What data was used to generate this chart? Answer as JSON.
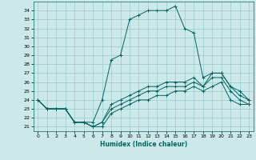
{
  "xlabel": "Humidex (Indice chaleur)",
  "xlim": [
    -0.5,
    23.5
  ],
  "ylim": [
    20.5,
    35.0
  ],
  "xticks": [
    0,
    1,
    2,
    3,
    4,
    5,
    6,
    7,
    8,
    9,
    10,
    11,
    12,
    13,
    14,
    15,
    16,
    17,
    18,
    19,
    20,
    21,
    22,
    23
  ],
  "yticks": [
    21,
    22,
    23,
    24,
    25,
    26,
    27,
    28,
    29,
    30,
    31,
    32,
    33,
    34
  ],
  "bg_color": "#cce8e8",
  "line_color": "#006666",
  "grid_color": "#99cccc",
  "lines": [
    {
      "x": [
        0,
        1,
        2,
        3,
        4,
        5,
        6,
        7,
        8,
        9,
        10,
        11,
        12,
        13,
        14,
        15,
        16,
        17,
        18,
        19,
        20,
        21,
        22,
        23
      ],
      "y": [
        24.0,
        23.0,
        23.0,
        23.0,
        21.5,
        21.5,
        21.5,
        24.0,
        28.5,
        29.0,
        33.0,
        33.5,
        34.0,
        34.0,
        34.0,
        34.5,
        32.0,
        31.5,
        26.5,
        27.0,
        27.0,
        25.5,
        25.0,
        24.0
      ]
    },
    {
      "x": [
        0,
        1,
        2,
        3,
        4,
        5,
        6,
        7,
        8,
        9,
        10,
        11,
        12,
        13,
        14,
        15,
        16,
        17,
        18,
        19,
        20,
        21,
        22,
        23
      ],
      "y": [
        24.0,
        23.0,
        23.0,
        23.0,
        21.5,
        21.5,
        21.0,
        21.5,
        23.5,
        24.0,
        24.5,
        25.0,
        25.5,
        25.5,
        26.0,
        26.0,
        26.0,
        26.5,
        25.5,
        27.0,
        27.0,
        25.5,
        24.5,
        24.0
      ]
    },
    {
      "x": [
        0,
        1,
        2,
        3,
        4,
        5,
        6,
        7,
        8,
        9,
        10,
        11,
        12,
        13,
        14,
        15,
        16,
        17,
        18,
        19,
        20,
        21,
        22,
        23
      ],
      "y": [
        24.0,
        23.0,
        23.0,
        23.0,
        21.5,
        21.5,
        21.0,
        21.5,
        23.0,
        23.5,
        24.0,
        24.5,
        25.0,
        25.0,
        25.5,
        25.5,
        25.5,
        26.0,
        25.5,
        26.5,
        26.5,
        25.0,
        24.0,
        23.5
      ]
    },
    {
      "x": [
        0,
        1,
        2,
        3,
        4,
        5,
        6,
        7,
        8,
        9,
        10,
        11,
        12,
        13,
        14,
        15,
        16,
        17,
        18,
        19,
        20,
        21,
        22,
        23
      ],
      "y": [
        24.0,
        23.0,
        23.0,
        23.0,
        21.5,
        21.5,
        21.0,
        21.0,
        22.5,
        23.0,
        23.5,
        24.0,
        24.0,
        24.5,
        24.5,
        25.0,
        25.0,
        25.5,
        25.0,
        25.5,
        26.0,
        24.0,
        23.5,
        23.5
      ]
    }
  ]
}
